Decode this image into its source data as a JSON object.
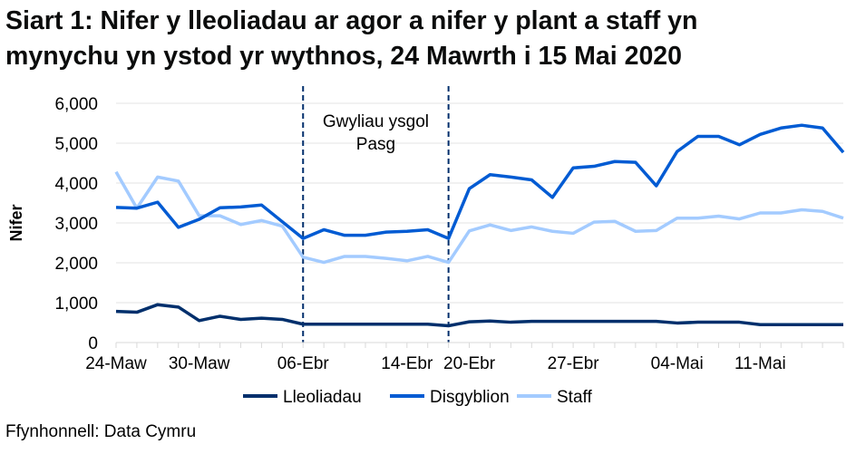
{
  "title_line1": "Siart 1: Nifer y lleoliadau ar agor a nifer y plant a staff yn",
  "title_line2": "mynychu yn ystod yr wythnos, 24 Mawrth i 15 Mai 2020",
  "source": "Ffynhonnell: Data Cymru",
  "chart_data": {
    "type": "line",
    "title": "Siart 1: Nifer y lleoliadau ar agor a nifer y plant a staff yn mynychu yn ystod yr wythnos, 24 Mawrth i 15 Mai 2020",
    "xlabel": "",
    "ylabel": "Nifer",
    "ylim": [
      0,
      6000
    ],
    "yticks": [
      0,
      1000,
      2000,
      3000,
      4000,
      5000,
      6000
    ],
    "ytick_labels": [
      "0",
      "1,000",
      "2,000",
      "3,000",
      "4,000",
      "5,000",
      "6,000"
    ],
    "grid": true,
    "legend_position": "bottom",
    "categories": [
      "24-Maw",
      "",
      "",
      "",
      "30-Maw",
      "",
      "",
      "",
      "",
      "06-Ebr",
      "",
      "",
      "",
      "",
      "14-Ebr",
      "",
      "",
      "20-Ebr",
      "",
      "",
      "",
      "",
      "27-Ebr",
      "",
      "",
      "",
      "",
      "04-Mai",
      "",
      "",
      "",
      "11-Mai",
      "",
      "",
      "",
      ""
    ],
    "annotation": {
      "line1": "Gwyliau ysgol",
      "line2": "Pasg",
      "start_index": 9,
      "end_index": 16
    },
    "series": [
      {
        "name": "Lleoliadau",
        "color": "#002f6c",
        "values": [
          780,
          760,
          950,
          890,
          550,
          660,
          580,
          610,
          580,
          460,
          460,
          460,
          460,
          460,
          460,
          460,
          420,
          520,
          540,
          510,
          530,
          530,
          530,
          530,
          530,
          530,
          530,
          490,
          510,
          510,
          510,
          450,
          450,
          450,
          450,
          450
        ]
      },
      {
        "name": "Disgyblion",
        "color": "#005bd3",
        "values": [
          3390,
          3370,
          3520,
          2890,
          3090,
          3380,
          3400,
          3450,
          3030,
          2610,
          2830,
          2690,
          2690,
          2770,
          2790,
          2830,
          2610,
          3860,
          4210,
          4150,
          4080,
          3640,
          4380,
          4420,
          4540,
          4520,
          3930,
          4790,
          5170,
          5170,
          4960,
          5220,
          5380,
          5450,
          5380,
          4770
        ]
      },
      {
        "name": "Staff",
        "color": "#a3cbff",
        "values": [
          4280,
          3370,
          4150,
          4050,
          3180,
          3180,
          2960,
          3060,
          2920,
          2140,
          2010,
          2160,
          2160,
          2110,
          2050,
          2160,
          2010,
          2800,
          2950,
          2810,
          2900,
          2790,
          2740,
          3020,
          3040,
          2790,
          2810,
          3120,
          3120,
          3170,
          3100,
          3250,
          3250,
          3330,
          3290,
          3120
        ]
      }
    ]
  }
}
